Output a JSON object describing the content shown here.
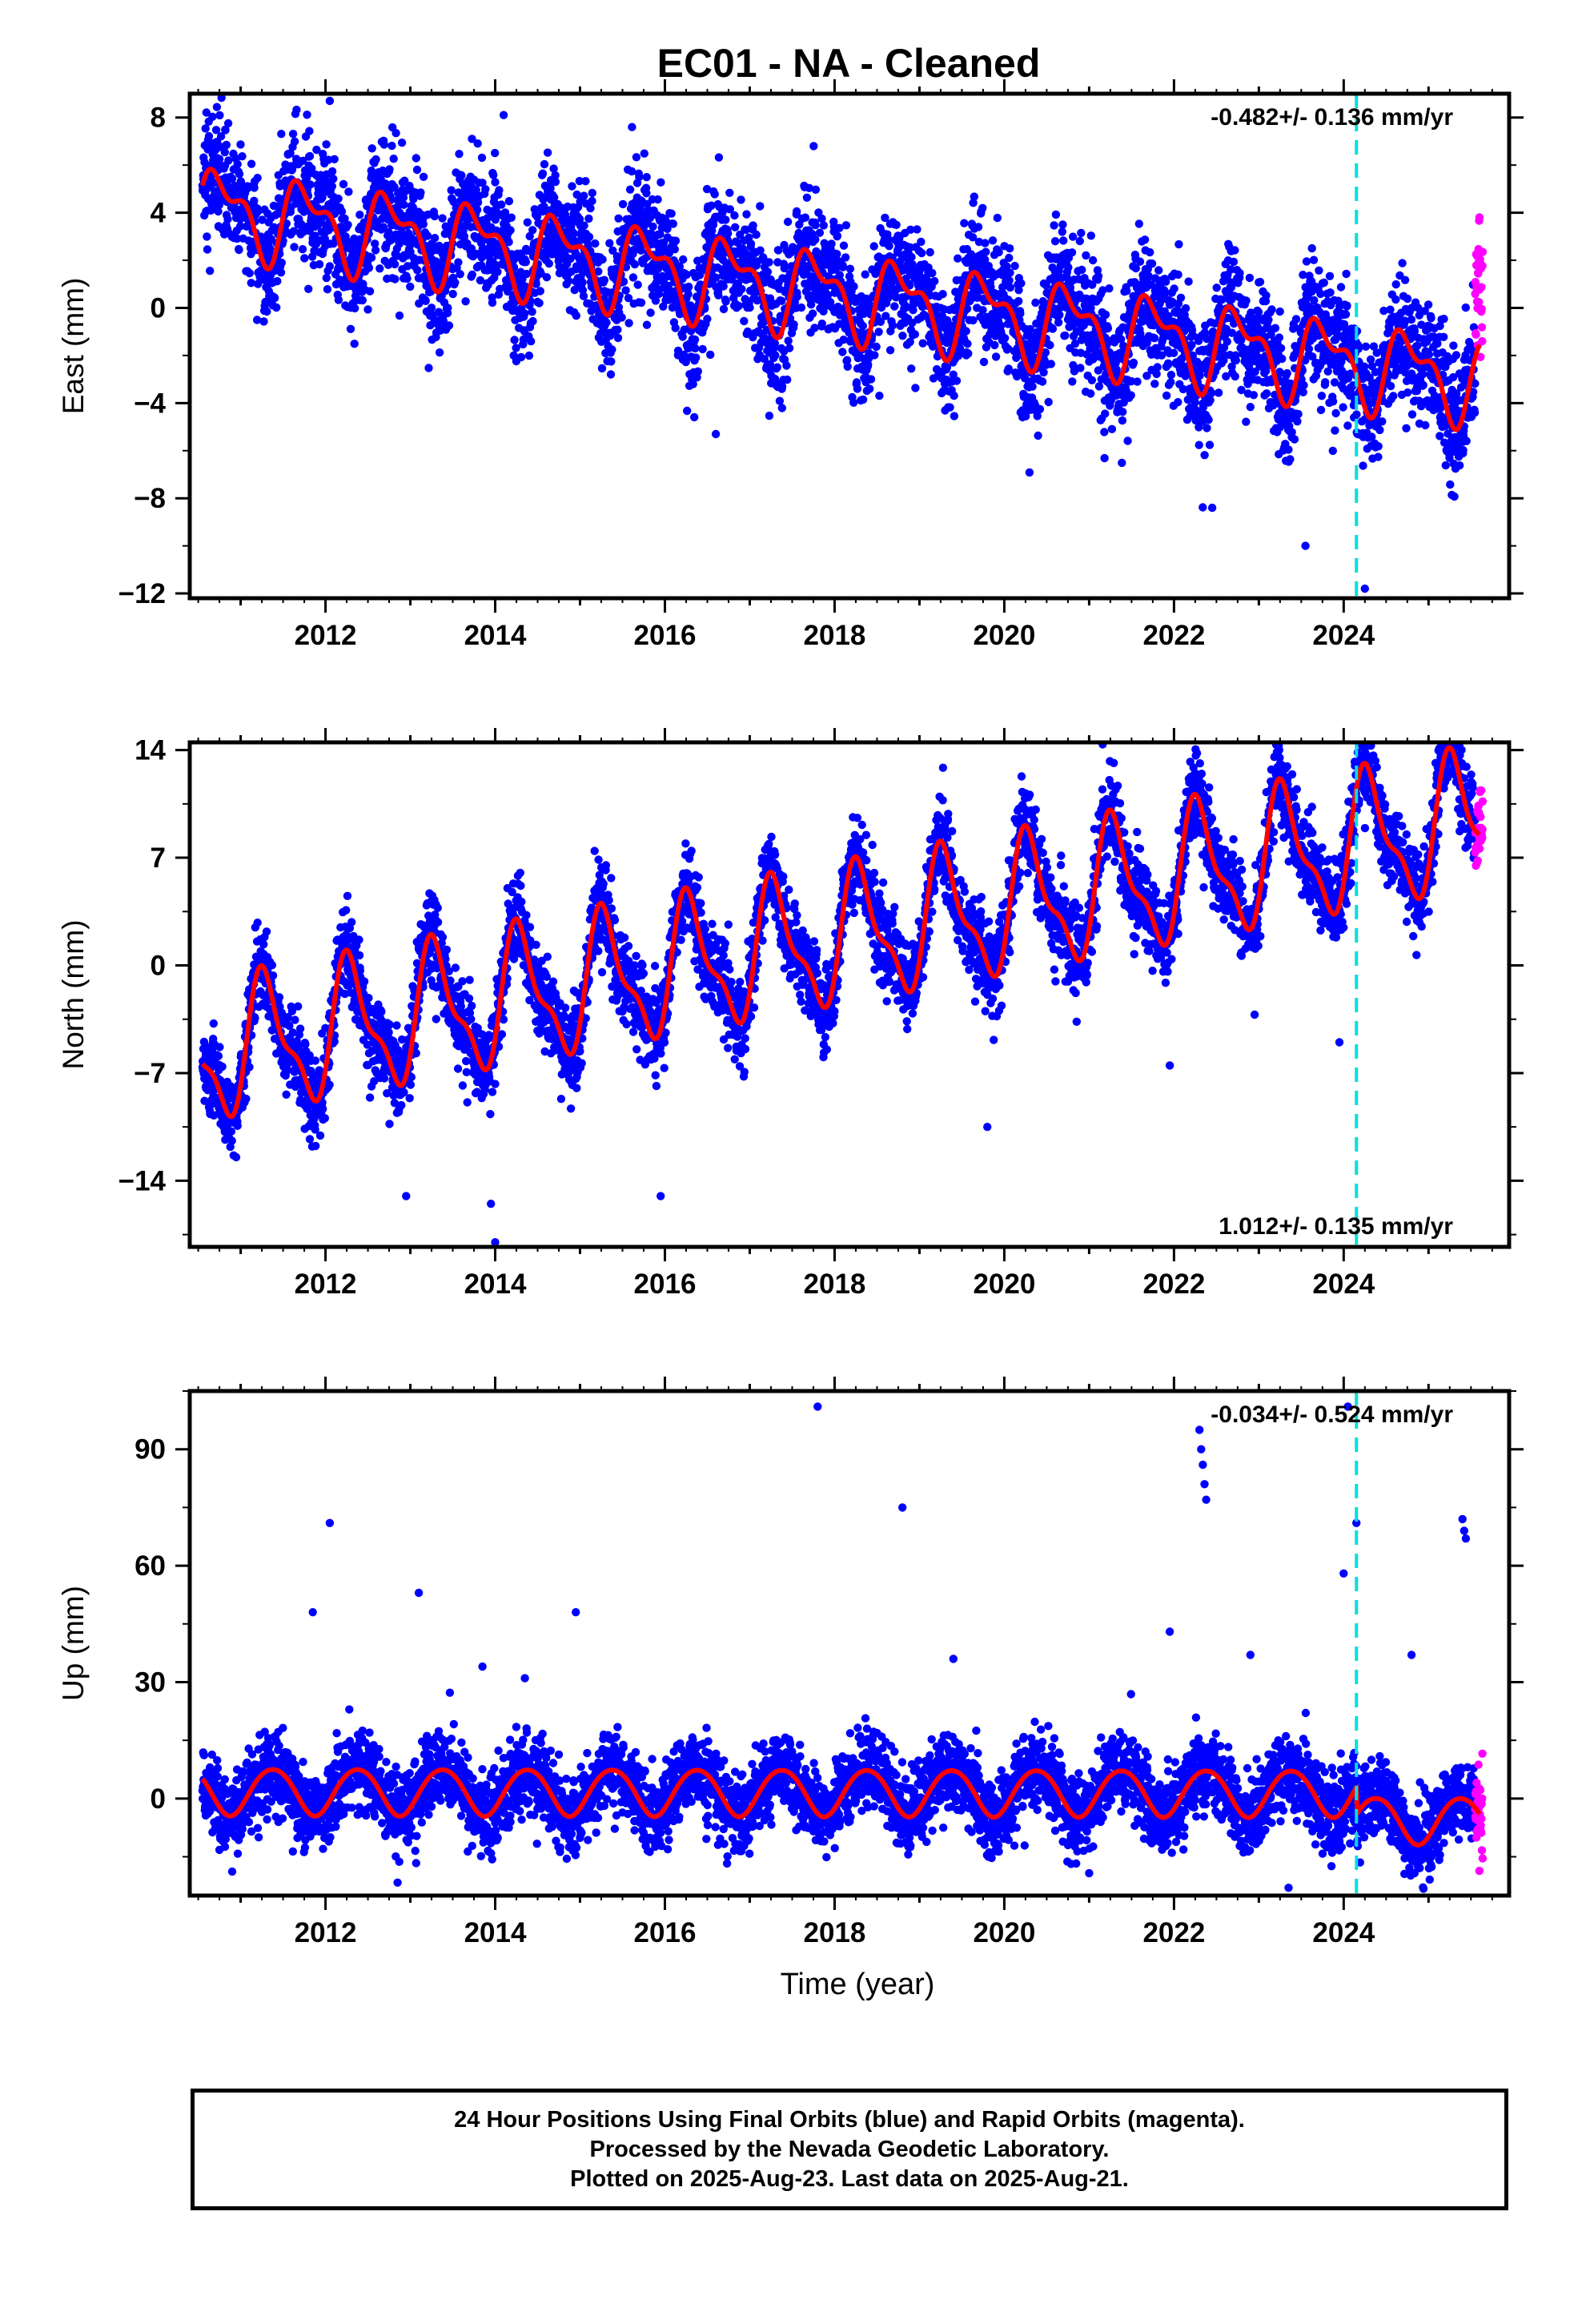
{
  "title": "EC01  - NA - Cleaned",
  "footer": {
    "line1": "24 Hour Positions Using Final Orbits (blue) and Rapid Orbits (magenta).",
    "line2": "Processed by the Nevada Geodetic Laboratory.",
    "line3": "Plotted on 2025-Aug-23. Last data on 2025-Aug-21."
  },
  "colors": {
    "final_orbits": "#0000ff",
    "rapid_orbits": "#ff00ff",
    "model": "#ff0000",
    "marker_line": "#00e0e0"
  },
  "chart_data": [
    {
      "type": "scatter",
      "ylabel": "East (mm)",
      "xlabel": "",
      "xlim": [
        2010.4,
        2025.95
      ],
      "ylim": [
        -12.2,
        9.0
      ],
      "x_ticks": [
        2012,
        2014,
        2016,
        2018,
        2020,
        2022,
        2024
      ],
      "x_tick_labels": [
        "2012",
        "2014",
        "2016",
        "2018",
        "2020",
        "2022",
        "2024"
      ],
      "y_ticks": [
        8,
        4,
        0,
        -4,
        -8,
        -12
      ],
      "y_tick_labels": [
        "8",
        "4",
        "0",
        "−4",
        "−8",
        "−12"
      ],
      "rate_text": "-0.482+/- 0.136 mm/yr",
      "rate_position": "top-right",
      "marker_line_x": 2024.15,
      "model": {
        "start": 2010.55,
        "end": 2025.6,
        "offset": 4.2,
        "trend_mm_per_yr": -0.482,
        "annual_amp": 1.5,
        "annual_phase": 3.0,
        "semiannual_amp": 0.8,
        "semiannual_phase": 0.4,
        "scatter": 1.3
      },
      "series": [
        {
          "name": "Final Orbits",
          "color": "#0000ff",
          "x_range": [
            2010.55,
            2025.55
          ]
        },
        {
          "name": "Rapid Orbits",
          "color": "#ff00ff",
          "x_range": [
            2025.55,
            2025.64
          ]
        }
      ],
      "outliers": [
        {
          "x": 2012.05,
          "y": 8.7
        },
        {
          "x": 2014.1,
          "y": 8.1
        },
        {
          "x": 2016.6,
          "y": -5.3
        },
        {
          "x": 2022.45,
          "y": -8.4
        },
        {
          "x": 2023.55,
          "y": -10.0
        },
        {
          "x": 2024.25,
          "y": -11.8
        },
        {
          "x": 2025.6,
          "y": 3.8
        }
      ]
    },
    {
      "type": "scatter",
      "ylabel": "North (mm)",
      "xlabel": "",
      "xlim": [
        2010.4,
        2025.95
      ],
      "ylim": [
        -18.3,
        14.5
      ],
      "x_ticks": [
        2012,
        2014,
        2016,
        2018,
        2020,
        2022,
        2024
      ],
      "x_tick_labels": [
        "2012",
        "2014",
        "2016",
        "2018",
        "2020",
        "2022",
        "2024"
      ],
      "y_ticks": [
        14,
        7,
        0,
        -7,
        -14
      ],
      "y_tick_labels": [
        "14",
        "7",
        "0",
        "−7",
        "−14"
      ],
      "rate_text": "1.012+/- 0.135 mm/yr",
      "rate_position": "bottom-right",
      "marker_line_x": 2024.15,
      "model": {
        "start": 2010.55,
        "end": 2025.6,
        "offset": -5.8,
        "trend_mm_per_yr": 1.012,
        "annual_amp": 4.0,
        "annual_phase": -0.3,
        "semiannual_amp": 1.5,
        "semiannual_phase": -1.0,
        "scatter": 1.4
      },
      "series": [
        {
          "name": "Final Orbits",
          "color": "#0000ff",
          "x_range": [
            2010.55,
            2025.55
          ]
        },
        {
          "name": "Rapid Orbits",
          "color": "#ff00ff",
          "x_range": [
            2025.55,
            2025.64
          ]
        }
      ],
      "outliers": [
        {
          "x": 2012.95,
          "y": -15.0
        },
        {
          "x": 2013.95,
          "y": -15.5
        },
        {
          "x": 2014.0,
          "y": -18.0
        },
        {
          "x": 2015.95,
          "y": -15.0
        },
        {
          "x": 2019.8,
          "y": -10.5
        },
        {
          "x": 2021.95,
          "y": -6.5
        },
        {
          "x": 2022.95,
          "y": -3.2
        },
        {
          "x": 2023.95,
          "y": -5.0
        },
        {
          "x": 2025.6,
          "y": 8.2
        }
      ]
    },
    {
      "type": "scatter",
      "ylabel": "Up (mm)",
      "xlabel": "Time (year)",
      "xlim": [
        2010.4,
        2025.95
      ],
      "ylim": [
        -25,
        105
      ],
      "x_ticks": [
        2012,
        2014,
        2016,
        2018,
        2020,
        2022,
        2024
      ],
      "x_tick_labels": [
        "2012",
        "2014",
        "2016",
        "2018",
        "2020",
        "2022",
        "2024"
      ],
      "y_ticks": [
        90,
        60,
        30,
        0
      ],
      "y_tick_labels": [
        "90",
        "60",
        "30",
        "0"
      ],
      "rate_text": "-0.034+/- 0.524 mm/yr",
      "rate_position": "top-right",
      "marker_line_x": 2024.15,
      "model": {
        "start": 2010.55,
        "end": 2025.6,
        "offset": 2.0,
        "trend_mm_per_yr": -0.034,
        "annual_amp": 6.0,
        "annual_phase": -0.8,
        "semiannual_amp": 0.5,
        "semiannual_phase": 0.0,
        "scatter": 5.0,
        "step_at": 2024.15,
        "step": -7.0
      },
      "series": [
        {
          "name": "Final Orbits",
          "color": "#0000ff",
          "x_range": [
            2010.55,
            2025.55
          ]
        },
        {
          "name": "Rapid Orbits",
          "color": "#ff00ff",
          "x_range": [
            2025.55,
            2025.64
          ]
        }
      ],
      "outliers": [
        {
          "x": 2011.85,
          "y": 48
        },
        {
          "x": 2012.05,
          "y": 71
        },
        {
          "x": 2013.1,
          "y": 53
        },
        {
          "x": 2013.85,
          "y": 34
        },
        {
          "x": 2014.35,
          "y": 31
        },
        {
          "x": 2014.95,
          "y": 48
        },
        {
          "x": 2017.8,
          "y": 101
        },
        {
          "x": 2018.8,
          "y": 75
        },
        {
          "x": 2019.4,
          "y": 36
        },
        {
          "x": 2021.95,
          "y": 43
        },
        {
          "x": 2022.3,
          "y": 95
        },
        {
          "x": 2022.32,
          "y": 90
        },
        {
          "x": 2022.34,
          "y": 86
        },
        {
          "x": 2022.36,
          "y": 81
        },
        {
          "x": 2022.38,
          "y": 77
        },
        {
          "x": 2022.9,
          "y": 37
        },
        {
          "x": 2023.35,
          "y": -23
        },
        {
          "x": 2024.0,
          "y": 58
        },
        {
          "x": 2024.05,
          "y": 101
        },
        {
          "x": 2024.15,
          "y": 71
        },
        {
          "x": 2024.8,
          "y": 37
        },
        {
          "x": 2025.4,
          "y": 72
        },
        {
          "x": 2025.42,
          "y": 69
        },
        {
          "x": 2025.44,
          "y": 67
        }
      ]
    }
  ]
}
